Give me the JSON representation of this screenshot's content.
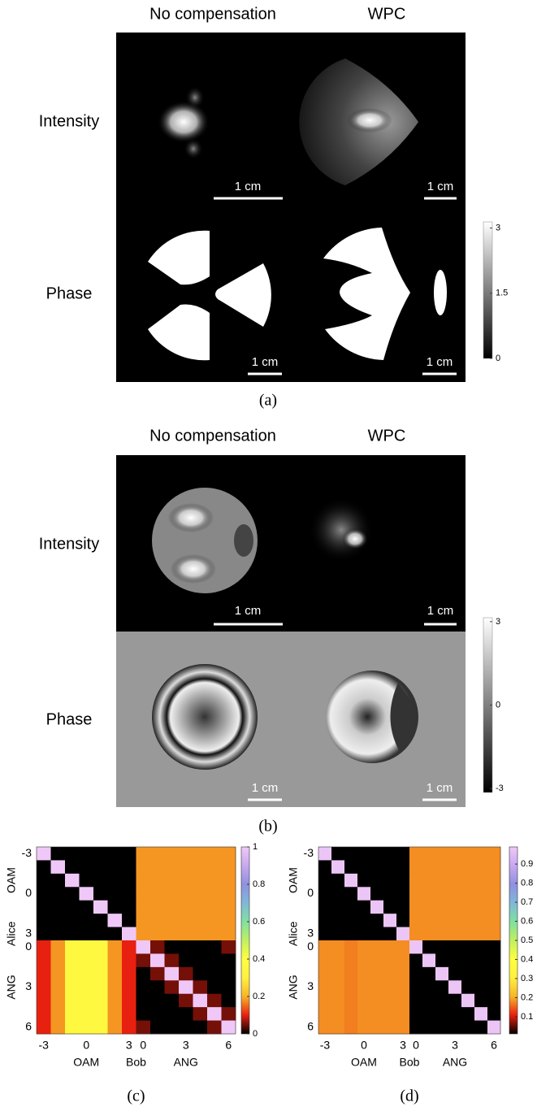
{
  "panel_a": {
    "caption": "(a)",
    "columns": [
      "No compensation",
      "WPC"
    ],
    "rows": [
      "Intensity",
      "Phase"
    ],
    "scale_bar": "1 cm",
    "colorbar": {
      "lim": [
        0,
        3.14159
      ],
      "ticks": [
        3,
        1.5,
        0
      ]
    }
  },
  "panel_b": {
    "caption": "(b)",
    "columns": [
      "No compensation",
      "WPC"
    ],
    "rows": [
      "Intensity",
      "Phase"
    ],
    "scale_bar": "1 cm",
    "colorbar": {
      "lim": [
        -3.14159,
        3.14159
      ],
      "ticks": [
        3,
        0,
        -3
      ]
    }
  },
  "chart_data": [
    {
      "type": "heatmap",
      "caption": "(c)",
      "xlabel": "Bob",
      "ylabel": "Alice",
      "x_groups": [
        "OAM",
        "ANG"
      ],
      "y_groups": [
        "OAM",
        "ANG"
      ],
      "categories": [
        "-3",
        null,
        null,
        "0",
        null,
        null,
        "3",
        "0",
        null,
        null,
        "3",
        null,
        null,
        "6"
      ],
      "colormap": [
        "#000000",
        "#e82010",
        "#f8b428",
        "#fff040",
        "#ffff40",
        "#c0f060",
        "#80e0a0",
        "#80b8d8",
        "#9090e0",
        "#c8a8f0",
        "#f0c8f8"
      ],
      "clim": [
        0,
        1
      ],
      "cticks": [
        0,
        0.2,
        0.4,
        0.6,
        0.8,
        1
      ],
      "values": [
        [
          1,
          0,
          0,
          0,
          0,
          0,
          0,
          0.18,
          0.18,
          0.18,
          0.18,
          0.18,
          0.18,
          0.18
        ],
        [
          0,
          1,
          0,
          0,
          0,
          0,
          0,
          0.18,
          0.18,
          0.18,
          0.18,
          0.18,
          0.18,
          0.18
        ],
        [
          0,
          0,
          1,
          0,
          0,
          0,
          0,
          0.18,
          0.18,
          0.18,
          0.18,
          0.18,
          0.18,
          0.18
        ],
        [
          0,
          0,
          0,
          1,
          0,
          0,
          0,
          0.18,
          0.18,
          0.18,
          0.18,
          0.18,
          0.18,
          0.18
        ],
        [
          0,
          0,
          0,
          0,
          1,
          0,
          0,
          0.18,
          0.18,
          0.18,
          0.18,
          0.18,
          0.18,
          0.18
        ],
        [
          0,
          0,
          0,
          0,
          0,
          1,
          0,
          0.18,
          0.18,
          0.18,
          0.18,
          0.18,
          0.18,
          0.18
        ],
        [
          0,
          0,
          0,
          0,
          0,
          0,
          1,
          0.18,
          0.18,
          0.18,
          0.18,
          0.18,
          0.18,
          0.18
        ],
        [
          0.1,
          0.18,
          0.35,
          0.35,
          0.35,
          0.18,
          0.1,
          1,
          0.05,
          0,
          0,
          0,
          0,
          0.05
        ],
        [
          0.1,
          0.18,
          0.35,
          0.35,
          0.35,
          0.18,
          0.1,
          0.05,
          1,
          0.05,
          0,
          0,
          0,
          0
        ],
        [
          0.1,
          0.18,
          0.35,
          0.35,
          0.35,
          0.18,
          0.1,
          0,
          0.05,
          1,
          0.05,
          0,
          0,
          0
        ],
        [
          0.1,
          0.18,
          0.35,
          0.35,
          0.35,
          0.18,
          0.1,
          0,
          0,
          0.05,
          1,
          0.05,
          0,
          0
        ],
        [
          0.1,
          0.18,
          0.35,
          0.35,
          0.35,
          0.18,
          0.1,
          0,
          0,
          0,
          0.05,
          1,
          0.05,
          0
        ],
        [
          0.1,
          0.18,
          0.35,
          0.35,
          0.35,
          0.18,
          0.1,
          0,
          0,
          0,
          0,
          0.05,
          1,
          0.05
        ],
        [
          0.1,
          0.18,
          0.35,
          0.35,
          0.35,
          0.18,
          0.1,
          0.05,
          0,
          0,
          0,
          0,
          0.05,
          1
        ]
      ]
    },
    {
      "type": "heatmap",
      "caption": "(d)",
      "xlabel": "Bob",
      "ylabel": "Alice",
      "x_groups": [
        "OAM",
        "ANG"
      ],
      "y_groups": [
        "OAM",
        "ANG"
      ],
      "categories": [
        "-3",
        null,
        null,
        "0",
        null,
        null,
        "3",
        "0",
        null,
        null,
        "3",
        null,
        null,
        "6"
      ],
      "colormap": [
        "#000000",
        "#e82010",
        "#f8b428",
        "#fff040",
        "#ffff40",
        "#c0f060",
        "#80e0a0",
        "#80b8d8",
        "#9090e0",
        "#c8a8f0",
        "#f0c8f8"
      ],
      "clim": [
        0.01,
        0.99
      ],
      "cticks": [
        0.1,
        0.2,
        0.3,
        0.4,
        0.5,
        0.6,
        0.7,
        0.8,
        0.9
      ],
      "values": [
        [
          0.98,
          0,
          0,
          0,
          0,
          0,
          0,
          0.18,
          0.18,
          0.18,
          0.18,
          0.18,
          0.18,
          0.18
        ],
        [
          0,
          0.98,
          0,
          0,
          0,
          0,
          0,
          0.18,
          0.18,
          0.18,
          0.18,
          0.18,
          0.18,
          0.18
        ],
        [
          0,
          0,
          0.98,
          0,
          0,
          0,
          0,
          0.18,
          0.18,
          0.18,
          0.18,
          0.18,
          0.18,
          0.18
        ],
        [
          0,
          0,
          0,
          0.98,
          0,
          0,
          0,
          0.18,
          0.18,
          0.18,
          0.18,
          0.18,
          0.18,
          0.18
        ],
        [
          0,
          0,
          0,
          0,
          0.98,
          0,
          0,
          0.18,
          0.18,
          0.18,
          0.18,
          0.18,
          0.18,
          0.18
        ],
        [
          0,
          0,
          0,
          0,
          0,
          0.98,
          0,
          0.18,
          0.18,
          0.18,
          0.18,
          0.18,
          0.18,
          0.18
        ],
        [
          0,
          0,
          0,
          0,
          0,
          0,
          0.98,
          0.18,
          0.18,
          0.18,
          0.18,
          0.18,
          0.18,
          0.18
        ],
        [
          0.18,
          0.18,
          0.17,
          0.18,
          0.18,
          0.18,
          0.18,
          0.98,
          0,
          0,
          0,
          0,
          0,
          0
        ],
        [
          0.18,
          0.18,
          0.17,
          0.18,
          0.18,
          0.18,
          0.18,
          0,
          0.98,
          0,
          0,
          0,
          0,
          0
        ],
        [
          0.18,
          0.18,
          0.17,
          0.18,
          0.18,
          0.18,
          0.18,
          0,
          0,
          0.98,
          0,
          0,
          0,
          0
        ],
        [
          0.18,
          0.18,
          0.17,
          0.18,
          0.18,
          0.18,
          0.18,
          0,
          0,
          0,
          0.98,
          0,
          0,
          0
        ],
        [
          0.18,
          0.18,
          0.17,
          0.18,
          0.18,
          0.18,
          0.18,
          0,
          0,
          0,
          0,
          0.98,
          0,
          0
        ],
        [
          0.18,
          0.18,
          0.17,
          0.18,
          0.18,
          0.18,
          0.18,
          0,
          0,
          0,
          0,
          0,
          0.98,
          0
        ],
        [
          0.18,
          0.18,
          0.17,
          0.18,
          0.18,
          0.18,
          0.18,
          0,
          0,
          0,
          0,
          0,
          0,
          0.98
        ]
      ]
    }
  ]
}
